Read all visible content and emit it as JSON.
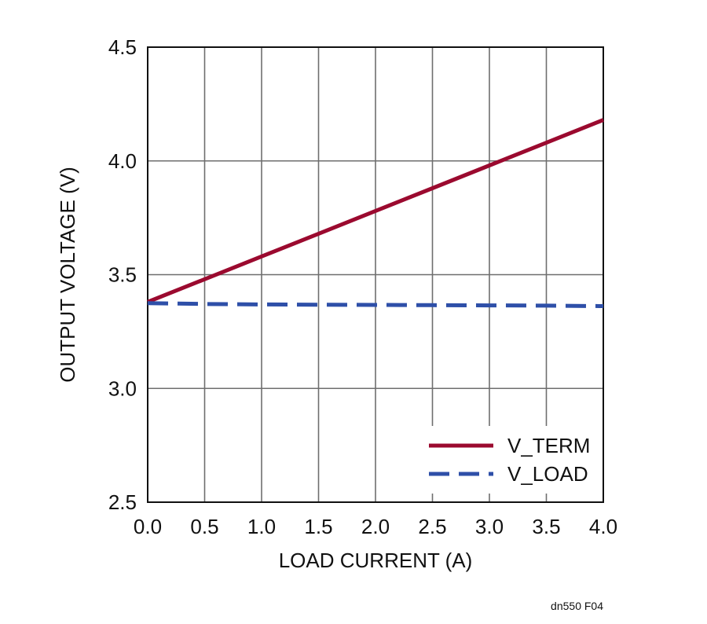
{
  "chart_data": {
    "type": "line",
    "xlabel": "LOAD CURRENT (A)",
    "ylabel": "OUTPUT VOLTAGE (V)",
    "xlim": [
      0,
      4
    ],
    "ylim": [
      2.5,
      4.5
    ],
    "x_ticks": [
      "0.0",
      "0.5",
      "1.0",
      "1.5",
      "2.0",
      "2.5",
      "3.0",
      "3.5",
      "4.0"
    ],
    "y_ticks": [
      "2.5",
      "3.0",
      "3.5",
      "4.0",
      "4.5"
    ],
    "grid": true,
    "legend_position": "bottom-right",
    "series": [
      {
        "name": "V_TERM",
        "color": "#9b0a2f",
        "style": "solid",
        "x": [
          0,
          0.5,
          1.0,
          1.5,
          2.0,
          2.5,
          3.0,
          3.5,
          4.0
        ],
        "y": [
          3.38,
          3.48,
          3.58,
          3.68,
          3.78,
          3.88,
          3.98,
          4.08,
          4.18
        ]
      },
      {
        "name": "V_LOAD",
        "color": "#2e4fa8",
        "style": "dashed",
        "x": [
          0,
          0.5,
          1.0,
          1.5,
          2.0,
          2.5,
          3.0,
          3.5,
          4.0
        ],
        "y": [
          3.375,
          3.371,
          3.369,
          3.368,
          3.367,
          3.366,
          3.365,
          3.364,
          3.362
        ]
      }
    ]
  },
  "footnote": "dn550 F04"
}
